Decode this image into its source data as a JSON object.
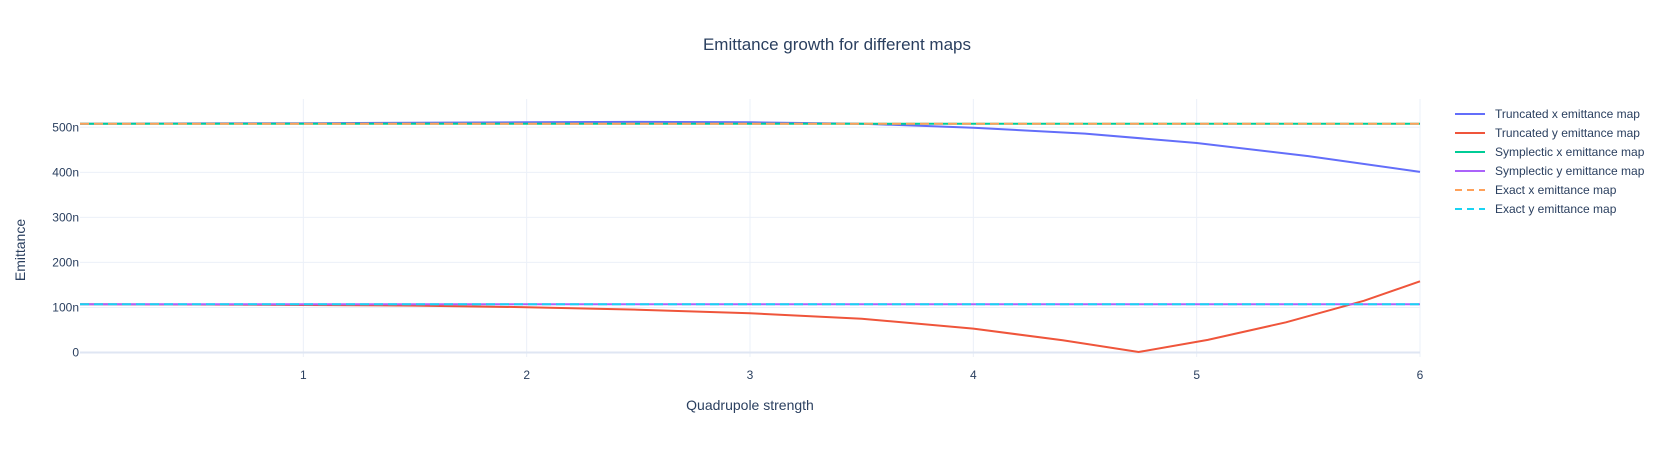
{
  "chart_data": {
    "type": "line",
    "title": "Emittance growth for different maps",
    "xlabel": "Quadrupole strength",
    "ylabel": "Emittance",
    "xlim": [
      0,
      6
    ],
    "ylim": [
      -10,
      545
    ],
    "x_ticks": [
      1,
      2,
      3,
      4,
      5,
      6
    ],
    "y_ticks": [
      0,
      100,
      200,
      300,
      400,
      500
    ],
    "y_tick_labels": [
      "0",
      "100n",
      "200n",
      "300n",
      "400n",
      "500n"
    ],
    "grid": true,
    "legend_position": "right",
    "series": [
      {
        "name": "Truncated x emittance map",
        "color": "#636efa",
        "dash": "solid",
        "x": [
          0,
          0.5,
          1,
          1.5,
          2,
          2.5,
          3,
          3.5,
          4,
          4.5,
          5,
          5.5,
          6
        ],
        "y": [
          508,
          508.5,
          509,
          510,
          511,
          512,
          511,
          508,
          499,
          486,
          465,
          436,
          401
        ]
      },
      {
        "name": "Truncated y emittance map",
        "color": "#ef553b",
        "dash": "solid",
        "x": [
          0,
          0.5,
          1,
          1.5,
          2,
          2.5,
          3,
          3.5,
          4,
          4.4,
          4.74,
          5.05,
          5.4,
          5.75,
          6
        ],
        "y": [
          107,
          106.5,
          105.5,
          104,
          100.5,
          95,
          87,
          75,
          53,
          27,
          1,
          28,
          67,
          115,
          158
        ]
      },
      {
        "name": "Symplectic x emittance map",
        "color": "#00cc96",
        "dash": "solid",
        "x": [
          0,
          6
        ],
        "y": [
          508,
          508
        ]
      },
      {
        "name": "Symplectic y emittance map",
        "color": "#ab63fa",
        "dash": "solid",
        "x": [
          0,
          6
        ],
        "y": [
          107,
          107
        ]
      },
      {
        "name": "Exact x emittance map",
        "color": "#ffa15a",
        "dash": "dash",
        "x": [
          0,
          6
        ],
        "y": [
          508,
          508
        ]
      },
      {
        "name": "Exact y emittance map",
        "color": "#19d3f3",
        "dash": "dash",
        "x": [
          0,
          6
        ],
        "y": [
          107,
          107
        ]
      }
    ]
  }
}
